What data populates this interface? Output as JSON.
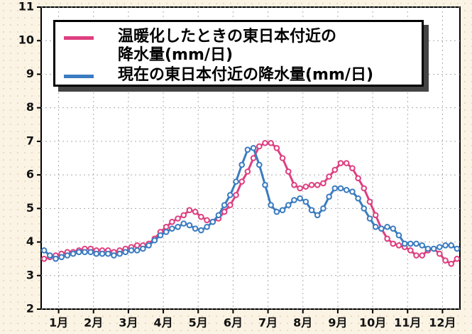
{
  "chart_data": {
    "type": "line",
    "x": [
      1,
      2,
      3,
      4,
      5,
      6,
      7,
      8,
      9,
      10,
      11,
      12,
      13,
      14,
      15,
      16,
      17,
      18,
      19,
      20,
      21,
      22,
      23,
      24,
      25,
      26,
      27,
      28,
      29,
      30,
      31,
      32,
      33,
      34,
      35,
      36,
      37,
      38,
      39,
      40,
      41,
      42,
      43,
      44,
      45,
      46,
      47,
      48,
      49,
      50,
      51,
      52,
      53,
      54,
      55,
      56,
      57,
      58,
      59,
      60,
      61,
      62,
      63,
      64,
      65,
      66,
      67,
      68,
      69,
      70,
      71,
      72
    ],
    "xlim": [
      0.5,
      72.5
    ],
    "xticks": [
      {
        "value": 3.5,
        "label": "1月"
      },
      {
        "value": 9.5,
        "label": "2月"
      },
      {
        "value": 15.5,
        "label": "3月"
      },
      {
        "value": 21.5,
        "label": "4月"
      },
      {
        "value": 27.5,
        "label": "5月"
      },
      {
        "value": 33.5,
        "label": "6月"
      },
      {
        "value": 39.5,
        "label": "7月"
      },
      {
        "value": 45.5,
        "label": "8月"
      },
      {
        "value": 51.5,
        "label": "9月"
      },
      {
        "value": 57.5,
        "label": "10月"
      },
      {
        "value": 63.5,
        "label": "11月"
      },
      {
        "value": 69.5,
        "label": "12月"
      }
    ],
    "ylim": [
      2,
      11
    ],
    "yticks": [
      2,
      3,
      4,
      5,
      6,
      7,
      8,
      9,
      10,
      11
    ],
    "grid": true,
    "series": [
      {
        "name": "温暖化したときの東日本付近の降水量(mm/日)",
        "color": "#de3f80",
        "values": [
          3.5,
          3.55,
          3.6,
          3.65,
          3.7,
          3.7,
          3.75,
          3.8,
          3.8,
          3.75,
          3.75,
          3.75,
          3.7,
          3.75,
          3.8,
          3.85,
          3.9,
          3.9,
          3.95,
          4.1,
          4.3,
          4.45,
          4.6,
          4.7,
          4.8,
          4.95,
          4.9,
          4.75,
          4.65,
          4.6,
          4.7,
          4.9,
          5.1,
          5.4,
          5.8,
          6.1,
          6.5,
          6.85,
          6.95,
          6.95,
          6.8,
          6.5,
          6.1,
          5.7,
          5.6,
          5.65,
          5.7,
          5.7,
          5.75,
          5.95,
          6.15,
          6.35,
          6.35,
          6.2,
          5.9,
          5.6,
          5.2,
          4.8,
          4.4,
          4.1,
          3.95,
          3.9,
          3.85,
          3.75,
          3.6,
          3.6,
          3.75,
          3.8,
          3.65,
          3.45,
          3.35,
          3.5
        ]
      },
      {
        "name": "現在の東日本付近の降水量(mm/日)",
        "color": "#3a7cc0",
        "values": [
          3.75,
          3.6,
          3.5,
          3.55,
          3.6,
          3.65,
          3.7,
          3.7,
          3.7,
          3.65,
          3.65,
          3.65,
          3.6,
          3.65,
          3.7,
          3.75,
          3.75,
          3.8,
          3.9,
          4.05,
          4.2,
          4.3,
          4.4,
          4.45,
          4.55,
          4.5,
          4.4,
          4.35,
          4.45,
          4.6,
          4.8,
          5.1,
          5.4,
          5.8,
          6.3,
          6.75,
          6.8,
          6.3,
          5.7,
          5.1,
          4.9,
          4.95,
          5.1,
          5.25,
          5.3,
          5.2,
          4.95,
          4.8,
          5.0,
          5.35,
          5.6,
          5.6,
          5.55,
          5.5,
          5.3,
          5.0,
          4.7,
          4.45,
          4.4,
          4.45,
          4.4,
          4.2,
          3.95,
          3.95,
          3.95,
          3.9,
          3.8,
          3.8,
          3.85,
          3.9,
          3.9,
          3.8
        ]
      }
    ]
  }
}
